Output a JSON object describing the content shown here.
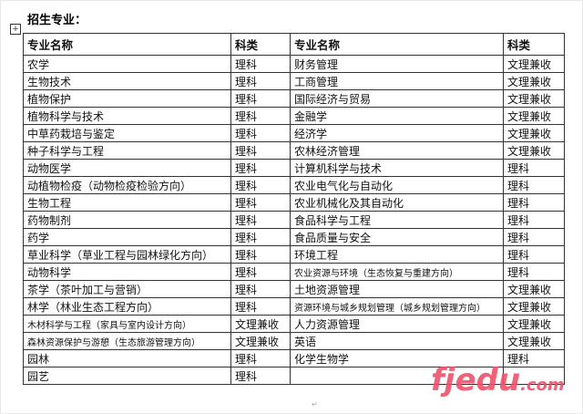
{
  "title": "招生专业：",
  "headers": [
    "专业名称",
    "科类",
    "专业名称",
    "科类"
  ],
  "rows": [
    [
      "农学",
      "理科",
      "财务管理",
      "文理兼收"
    ],
    [
      "生物技术",
      "理科",
      "工商管理",
      "文理兼收"
    ],
    [
      "植物保护",
      "理科",
      "国际经济与贸易",
      "文理兼收"
    ],
    [
      "植物科学与技术",
      "理科",
      "金融学",
      "文理兼收"
    ],
    [
      "中草药栽培与鉴定",
      "理科",
      "经济学",
      "文理兼收"
    ],
    [
      "种子科学与工程",
      "理科",
      "农林经济管理",
      "文理兼收"
    ],
    [
      "动物医学",
      "理科",
      "计算机科学与技术",
      "理科"
    ],
    [
      "动植物检疫（动物检疫检验方向）",
      "理科",
      "农业电气化与自动化",
      "理科"
    ],
    [
      "生物工程",
      "理科",
      "农业机械化及其自动化",
      "理科"
    ],
    [
      "药物制剂",
      "理科",
      "食品科学与工程",
      "理科"
    ],
    [
      "药学",
      "理科",
      "食品质量与安全",
      "理科"
    ],
    [
      "草业科学（草业工程与园林绿化方向）",
      "理科",
      "环境工程",
      "理科"
    ],
    [
      "动物科学",
      "理科",
      "农业资源与环境（生态恢复与重建方向）",
      "理科"
    ],
    [
      "茶学（茶叶加工与营销）",
      "理科",
      "土地资源管理",
      "文理兼收"
    ],
    [
      "林学（林业生态工程方向）",
      "理科",
      "资源环境与城乡规划管理（城乡规划管理方向）",
      "文理兼收"
    ],
    [
      "木材科学与工程（家具与室内设计方向）",
      "文理兼收",
      "人力资源管理",
      "文理兼收"
    ],
    [
      "森林资源保护与游憩（生态旅游管理方向）",
      "文理兼收",
      "英语",
      "文理兼收"
    ],
    [
      "园林",
      "理科",
      "化学生物学",
      "理科"
    ],
    [
      "园艺",
      "理科",
      "",
      ""
    ]
  ],
  "watermark": "fjedu.com"
}
